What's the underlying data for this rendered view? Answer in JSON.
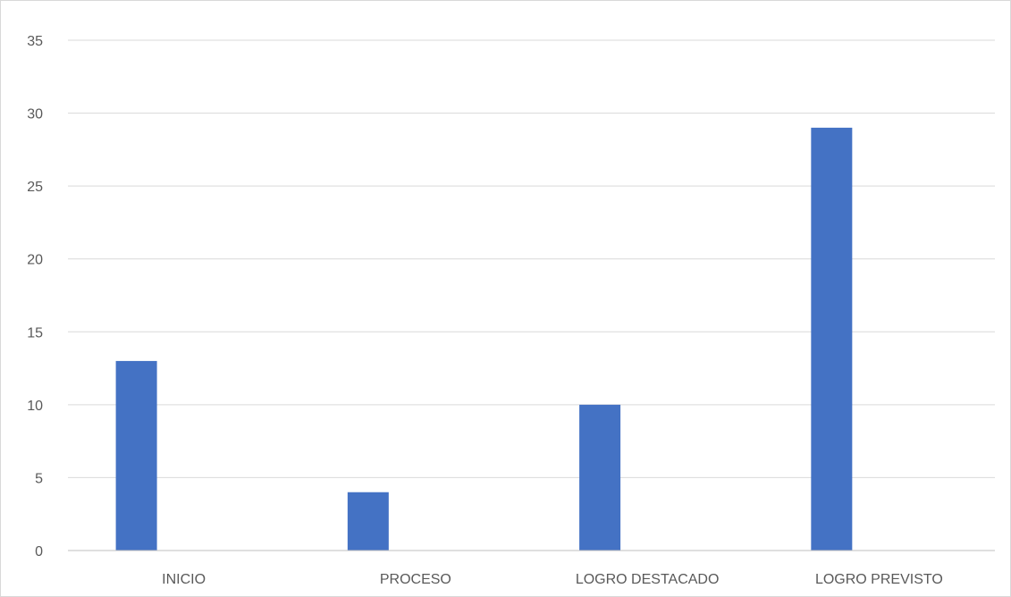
{
  "chart_data": {
    "type": "bar",
    "categories": [
      "INICIO",
      "PROCESO",
      "LOGRO DESTACADO",
      "LOGRO PREVISTO"
    ],
    "series": [
      {
        "values": [
          13,
          4,
          10,
          29
        ]
      }
    ],
    "title": "",
    "xlabel": "",
    "ylabel": "",
    "ylim": [
      0,
      35
    ],
    "yticks": [
      0,
      5,
      10,
      15,
      20,
      25,
      30,
      35
    ],
    "grid": true,
    "legend": "none",
    "colors": {
      "bar": "#4472C4",
      "grid": "#d9d9d9",
      "axis": "#bfbfbf",
      "text": "#595959"
    }
  }
}
